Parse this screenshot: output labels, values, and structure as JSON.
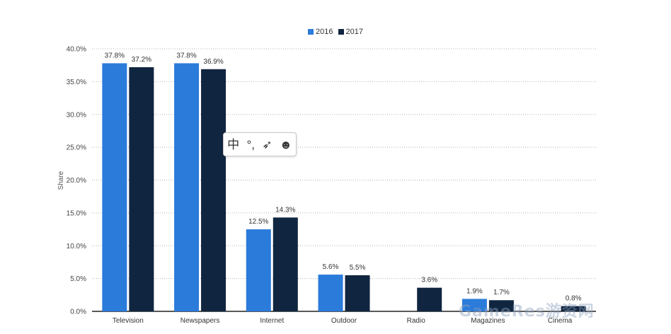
{
  "chart_data": {
    "type": "bar",
    "categories": [
      "Television",
      "Newspapers",
      "Internet",
      "Outdoor",
      "Radio",
      "Magazines",
      "Cinema"
    ],
    "series": [
      {
        "name": "2016",
        "color": "#2b7bdb",
        "values": [
          37.8,
          37.8,
          12.5,
          5.6,
          null,
          1.9,
          null
        ],
        "labels": [
          "37.8%",
          "37.8%",
          "12.5%",
          "5.6%",
          "",
          "1.9%",
          ""
        ]
      },
      {
        "name": "2017",
        "color": "#10253f",
        "values": [
          37.2,
          36.9,
          14.3,
          5.5,
          3.6,
          1.7,
          0.8
        ],
        "labels": [
          "37.2%",
          "36.9%",
          "14.3%",
          "5.5%",
          "3.6%",
          "1.7%",
          "0.8%"
        ]
      }
    ],
    "ylabel": "Share",
    "ylim": [
      0,
      40
    ],
    "yticks": [
      0,
      5,
      10,
      15,
      20,
      25,
      30,
      35,
      40
    ],
    "ytick_labels": [
      "0.0%",
      "5.0%",
      "10.0%",
      "15.0%",
      "20.0%",
      "25.0%",
      "30.0%",
      "35.0%",
      "40.0%"
    ],
    "grid": true,
    "legend_position": "top-center"
  },
  "toolbar": {
    "icons": [
      "book-icon",
      "quote-icon",
      "pin-icon",
      "mascot-icon"
    ],
    "glyphs": [
      "中",
      "°,",
      "➶",
      "☻"
    ]
  },
  "watermark": {
    "text": "GameRes游资网"
  }
}
